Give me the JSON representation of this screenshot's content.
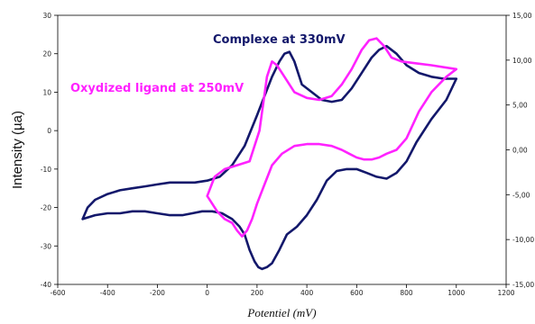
{
  "chart_data": {
    "type": "line",
    "title": "",
    "xlabel": "Potentiel (mV)",
    "ylabel": "Intensity (µa)",
    "xlim": [
      -600,
      1200
    ],
    "ylim": [
      -40,
      30
    ],
    "y2lim": [
      -15,
      15
    ],
    "grid": false,
    "legend": "none",
    "x_ticks": [
      "-600",
      "-400",
      "-200",
      "0",
      "200",
      "400",
      "600",
      "800",
      "1000",
      "1200"
    ],
    "y_ticks": [
      "30",
      "20",
      "10",
      "0",
      "-10",
      "-20",
      "-30",
      "-40"
    ],
    "y2_ticks": [
      "15,00",
      "10,00",
      "5,00",
      "0,00",
      "-5,00",
      "-10,00",
      "-15,00"
    ],
    "annotations": [
      {
        "id": "complexe",
        "text": "Complexe at 330mV",
        "color": "#13186b"
      },
      {
        "id": "ligand",
        "text": "Oxydized ligand at 250mV",
        "color": "#ff22ff"
      }
    ],
    "series": [
      {
        "color": "#13186b",
        "x": [
          -500,
          -480,
          -450,
          -400,
          -350,
          -300,
          -250,
          -200,
          -150,
          -100,
          -50,
          0,
          50,
          100,
          150,
          200,
          230,
          260,
          290,
          310,
          330,
          350,
          380,
          420,
          460,
          500,
          540,
          580,
          620,
          660,
          690,
          720,
          760,
          800,
          850,
          900,
          950,
          1000,
          1000,
          960,
          900,
          840,
          800,
          760,
          720,
          680,
          640,
          600,
          560,
          520,
          480,
          440,
          400,
          360,
          320,
          290,
          260,
          240,
          220,
          205,
          190,
          170,
          150,
          130,
          100,
          60,
          20,
          -20,
          -60,
          -100,
          -150,
          -200,
          -250,
          -300,
          -350,
          -400,
          -450,
          -500
        ],
        "y": [
          -23,
          -20,
          -18,
          -16.5,
          -15.5,
          -15,
          -14.5,
          -14,
          -13.5,
          -13.5,
          -13.5,
          -13,
          -12,
          -9,
          -4,
          4,
          9,
          14,
          18,
          20,
          20.5,
          18,
          12,
          10,
          8,
          7.5,
          8,
          11,
          15,
          19,
          21,
          22,
          20,
          17,
          15,
          14,
          13.5,
          13.5,
          13.5,
          8,
          3,
          -3,
          -8,
          -11,
          -12.5,
          -12,
          -11,
          -10,
          -10,
          -10.5,
          -13,
          -18,
          -22,
          -25,
          -27,
          -31,
          -34.5,
          -35.5,
          -36,
          -35.5,
          -34,
          -31,
          -27,
          -25,
          -23,
          -21.5,
          -21,
          -21,
          -21.5,
          -22,
          -22,
          -21.5,
          -21,
          -21,
          -21.5,
          -21.5,
          -22,
          -23
        ]
      },
      {
        "color": "#ff22ff",
        "x": [
          0,
          30,
          70,
          120,
          170,
          210,
          240,
          260,
          280,
          310,
          350,
          400,
          450,
          500,
          540,
          580,
          620,
          650,
          680,
          710,
          740,
          780,
          840,
          900,
          950,
          1000,
          1000,
          960,
          900,
          850,
          800,
          760,
          720,
          690,
          660,
          630,
          600,
          570,
          540,
          500,
          450,
          400,
          350,
          300,
          260,
          230,
          200,
          180,
          160,
          140,
          120,
          100,
          70,
          40,
          20,
          0
        ],
        "y": [
          -17,
          -12,
          -10,
          -9,
          -8,
          0,
          14,
          18,
          17,
          14,
          10,
          8.5,
          8,
          9,
          12,
          16,
          21,
          23.5,
          24,
          22,
          19,
          18,
          17.5,
          17,
          16.5,
          16,
          16,
          14,
          10,
          5,
          -2,
          -5,
          -6,
          -7,
          -7.5,
          -7.5,
          -7,
          -6,
          -5,
          -4,
          -3.5,
          -3.5,
          -4,
          -6,
          -9,
          -14,
          -19,
          -23,
          -26,
          -27.5,
          -26,
          -24,
          -23,
          -21,
          -19,
          -17
        ]
      }
    ]
  }
}
